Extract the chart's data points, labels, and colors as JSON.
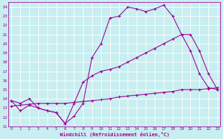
{
  "xlabel": "Windchill (Refroidissement éolien,°C)",
  "bg_color": "#c8eef0",
  "line_color": "#990099",
  "grid_color": "#ffffff",
  "series1_x": [
    0,
    1,
    2,
    3,
    4,
    5,
    6,
    7,
    8,
    9,
    10,
    11,
    12,
    13,
    14,
    15,
    16,
    17,
    18,
    19,
    20,
    21,
    22,
    23
  ],
  "series1_y": [
    13.8,
    12.7,
    13.3,
    13.0,
    12.7,
    12.5,
    11.3,
    12.1,
    13.5,
    18.5,
    20.0,
    22.8,
    23.0,
    24.0,
    23.8,
    23.5,
    23.8,
    24.2,
    23.0,
    21.0,
    19.2,
    16.7,
    15.2,
    15.0
  ],
  "series2_x": [
    0,
    1,
    2,
    3,
    4,
    5,
    6,
    7,
    8,
    9,
    10,
    11,
    12,
    13,
    14,
    15,
    16,
    17,
    18,
    19,
    20,
    21,
    22,
    23
  ],
  "series2_y": [
    13.8,
    13.5,
    14.0,
    13.0,
    12.7,
    12.5,
    11.3,
    13.5,
    15.8,
    16.5,
    17.0,
    17.2,
    17.5,
    18.0,
    18.5,
    19.0,
    19.5,
    20.0,
    20.5,
    21.0,
    21.0,
    19.2,
    16.7,
    15.0
  ],
  "series3_x": [
    0,
    1,
    2,
    3,
    4,
    5,
    6,
    7,
    8,
    9,
    10,
    11,
    12,
    13,
    14,
    15,
    16,
    17,
    18,
    19,
    20,
    21,
    22,
    23
  ],
  "series3_y": [
    13.2,
    13.3,
    13.4,
    13.5,
    13.5,
    13.5,
    13.5,
    13.6,
    13.7,
    13.8,
    13.9,
    14.0,
    14.2,
    14.3,
    14.4,
    14.5,
    14.6,
    14.7,
    14.8,
    15.0,
    15.0,
    15.0,
    15.1,
    15.2
  ],
  "xlim": [
    0,
    23
  ],
  "ylim": [
    11,
    24.5
  ],
  "yticks": [
    11,
    12,
    13,
    14,
    15,
    16,
    17,
    18,
    19,
    20,
    21,
    22,
    23,
    24
  ],
  "xticks": [
    0,
    1,
    2,
    3,
    4,
    5,
    6,
    7,
    8,
    9,
    10,
    11,
    12,
    13,
    14,
    15,
    16,
    17,
    18,
    19,
    20,
    21,
    22,
    23
  ]
}
